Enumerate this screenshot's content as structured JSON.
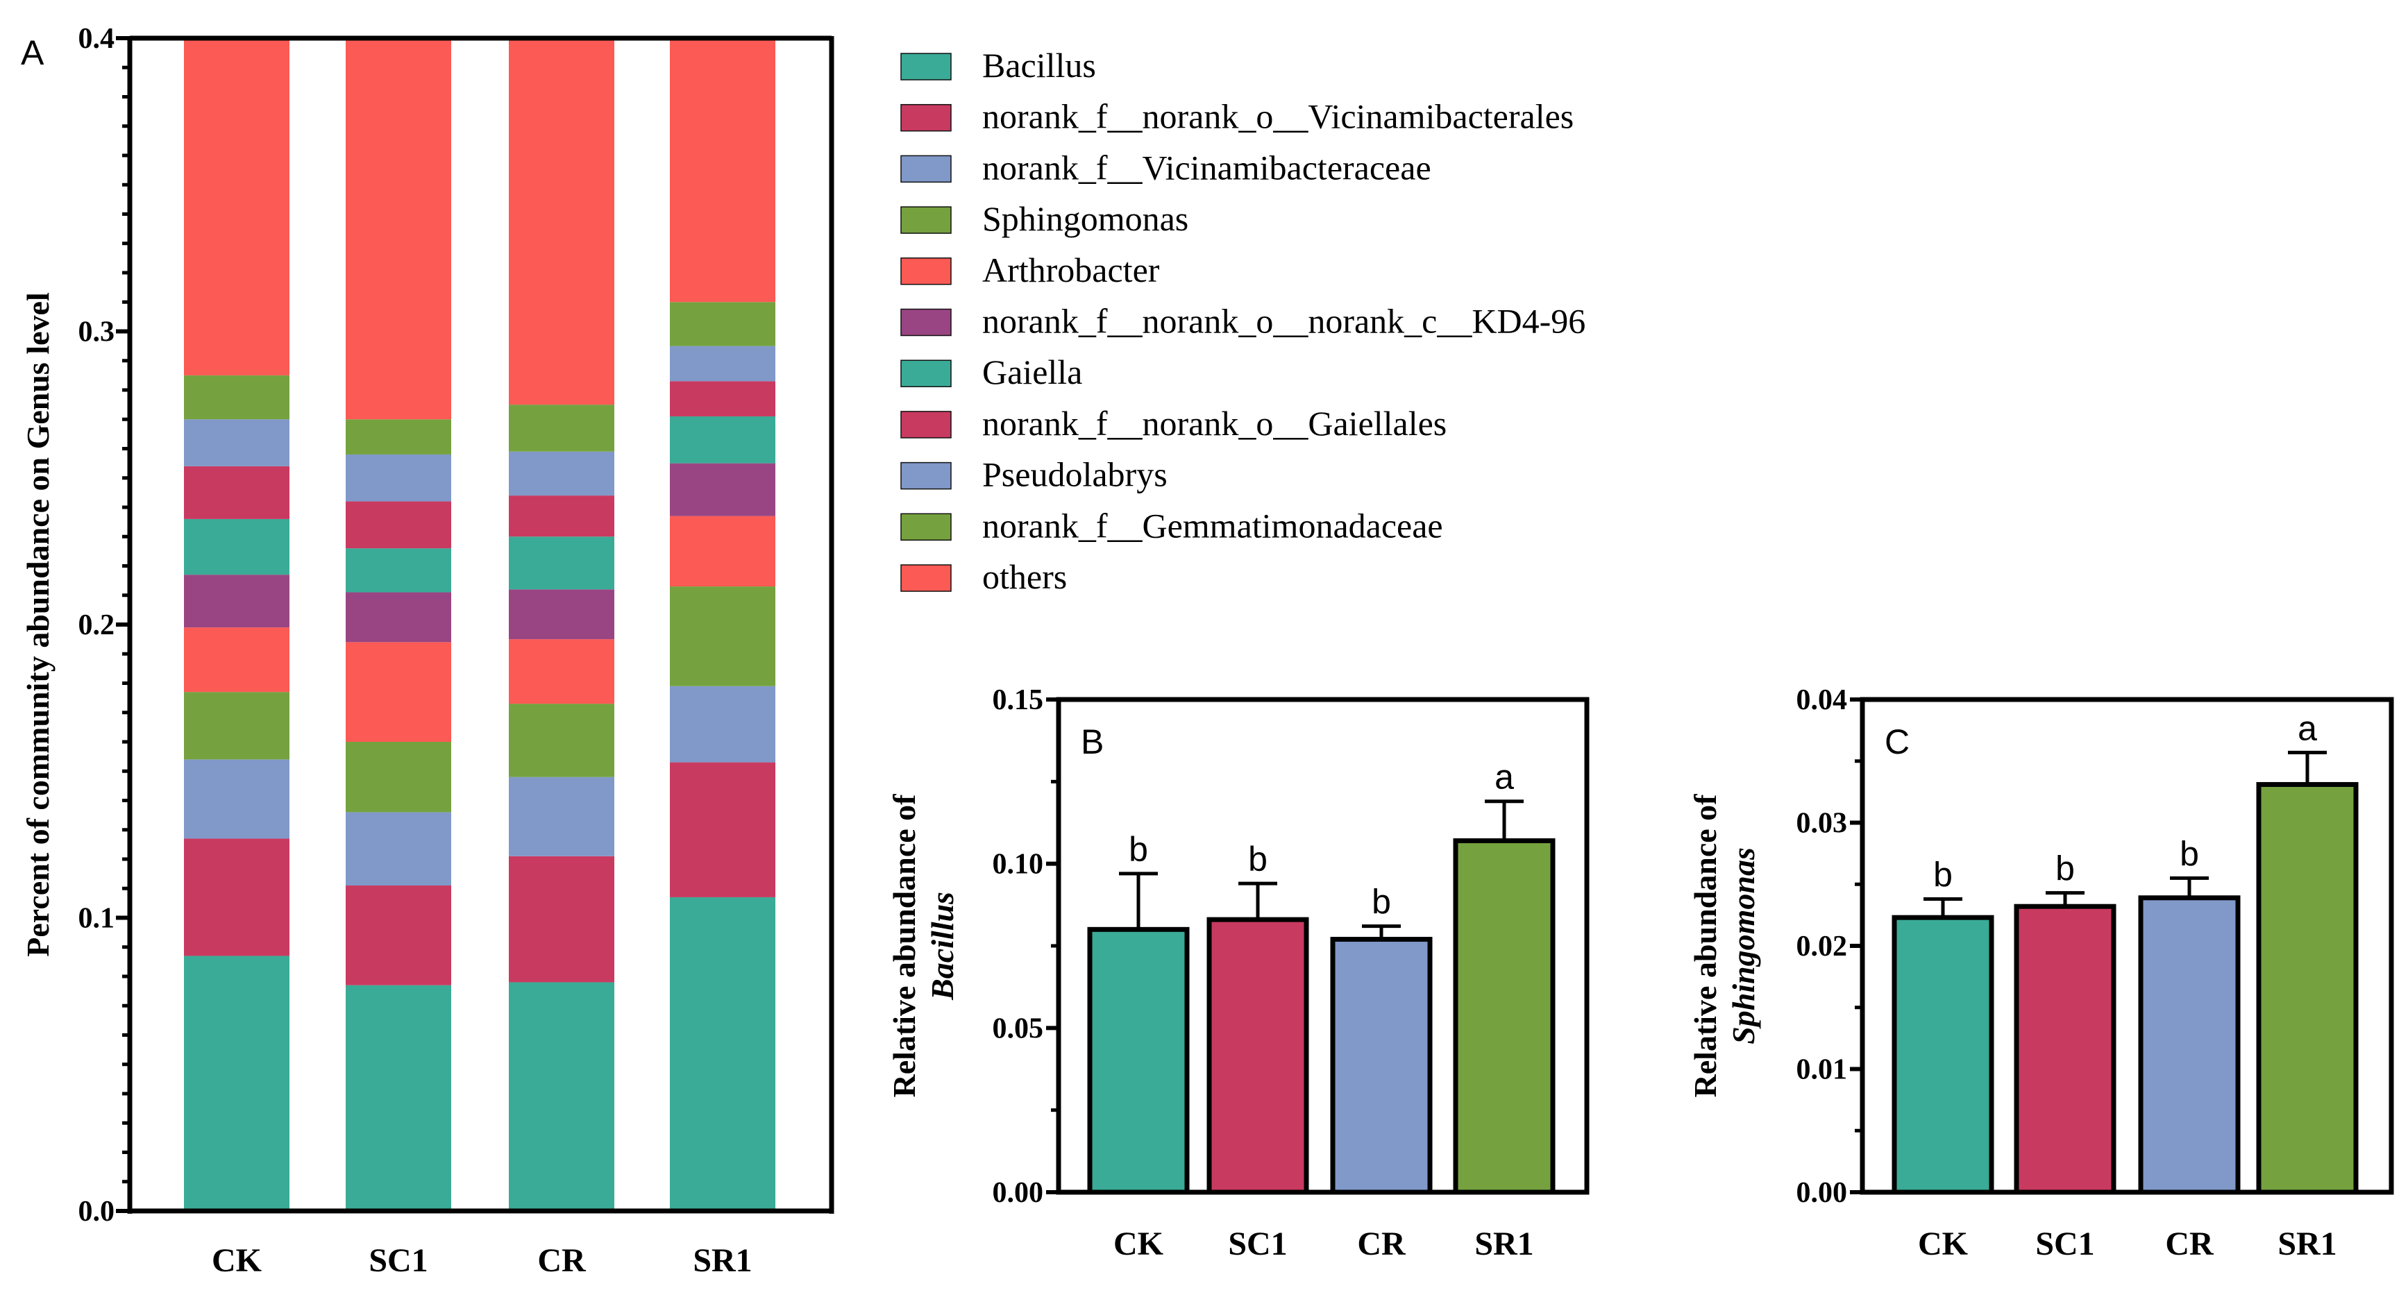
{
  "colors": {
    "Bacillus": "#3aab96",
    "norank_f__norank_o__Vicinamibacterales": "#c93a60",
    "norank_f__Vicinamibacteraceae": "#8099c9",
    "Sphingomonas": "#75a23f",
    "Arthrobacter": "#fc5a55",
    "norank_f__norank_o__norank_c__KD4-96": "#9a4583",
    "Gaiella": "#3aab96",
    "norank_f__norank_o__Gaiellales": "#c93a60",
    "Pseudolabrys": "#8099c9",
    "norank_f__Gemmatimonadaceae": "#75a23f",
    "others": "#fc5a55"
  },
  "chart_data": [
    {
      "panel": "A",
      "type": "bar",
      "stacked": true,
      "title": "",
      "xlabel": "",
      "ylabel": "Percent of community abundance on Genus level",
      "ylim": [
        0.0,
        0.4
      ],
      "yticks": [
        "0.0",
        "0.1",
        "0.2",
        "0.3",
        "0.4"
      ],
      "categories": [
        "CK",
        "SC1",
        "CR",
        "SR1"
      ],
      "legend_position": "right",
      "series": [
        {
          "name": "Bacillus",
          "values": [
            0.087,
            0.077,
            0.078,
            0.107
          ]
        },
        {
          "name": "norank_f__norank_o__Vicinamibacterales",
          "values": [
            0.04,
            0.034,
            0.043,
            0.046
          ]
        },
        {
          "name": "norank_f__Vicinamibacteraceae",
          "values": [
            0.027,
            0.025,
            0.027,
            0.026
          ]
        },
        {
          "name": "Sphingomonas",
          "values": [
            0.023,
            0.024,
            0.025,
            0.034
          ]
        },
        {
          "name": "Arthrobacter",
          "values": [
            0.022,
            0.034,
            0.022,
            0.024
          ]
        },
        {
          "name": "norank_f__norank_o__norank_c__KD4-96",
          "values": [
            0.018,
            0.017,
            0.017,
            0.018
          ]
        },
        {
          "name": "Gaiella",
          "values": [
            0.019,
            0.015,
            0.018,
            0.016
          ]
        },
        {
          "name": "norank_f__norank_o__Gaiellales",
          "values": [
            0.018,
            0.016,
            0.014,
            0.012
          ]
        },
        {
          "name": "Pseudolabrys",
          "values": [
            0.016,
            0.016,
            0.015,
            0.012
          ]
        },
        {
          "name": "norank_f__Gemmatimonadaceae",
          "values": [
            0.015,
            0.012,
            0.016,
            0.015
          ]
        },
        {
          "name": "others",
          "values": [
            0.115,
            0.13,
            0.125,
            0.09
          ]
        }
      ]
    },
    {
      "panel": "B",
      "type": "bar",
      "title": "",
      "ylabel_line1": "Relative abundance of",
      "ylabel_line2": "Bacillus",
      "ylim": [
        0.0,
        0.15
      ],
      "yticks": [
        "0.00",
        "0.05",
        "0.10",
        "0.15"
      ],
      "categories": [
        "CK",
        "SC1",
        "CR",
        "SR1"
      ],
      "values": [
        0.08,
        0.083,
        0.077,
        0.107
      ],
      "errors": [
        0.017,
        0.011,
        0.004,
        0.012
      ],
      "significance": [
        "b",
        "b",
        "b",
        "a"
      ]
    },
    {
      "panel": "C",
      "type": "bar",
      "title": "",
      "ylabel_line1": "Relative abundance of",
      "ylabel_line2": "Sphingomonas",
      "ylim": [
        0.0,
        0.04
      ],
      "yticks": [
        "0.00",
        "0.01",
        "0.02",
        "0.03",
        "0.04"
      ],
      "categories": [
        "CK",
        "SC1",
        "CR",
        "SR1"
      ],
      "values": [
        0.0223,
        0.0232,
        0.0239,
        0.0331
      ],
      "errors": [
        0.0015,
        0.0011,
        0.0016,
        0.0026
      ],
      "significance": [
        "b",
        "b",
        "b",
        "a"
      ]
    }
  ]
}
